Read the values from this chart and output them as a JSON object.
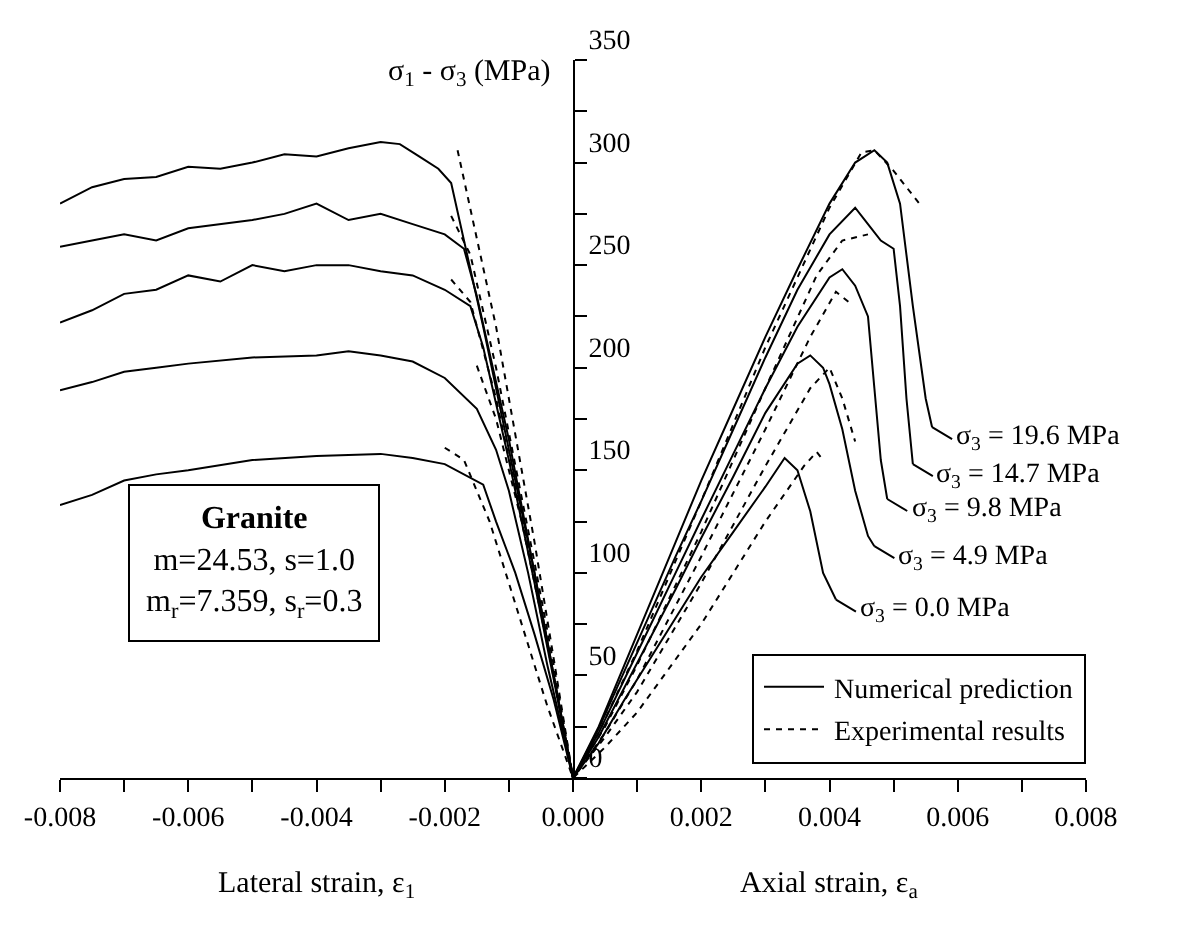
{
  "chart_data": {
    "type": "line",
    "xlabel": "Lateral strain, ε$_{1}$",
    "ylabel": "σ$_{1}$ - σ$_{3}$ (MPa)",
    "annotations": [
      "Granite\nm=24.53, s=1.0\nm$_{r}$=7.359, s$_{r}$=0.3",
      "Axial strain, ε$_{a}$",
      {
        "text": "σ$_{3}$ = 19.6 MPa",
        "x": 0.0056,
        "y": 171
      },
      {
        "text": "σ$_{3}$ = 14.7 MPa",
        "x": 0.0053,
        "y": 153
      },
      {
        "text": "σ$_{3}$ = 9.8 MPa",
        "x": 0.0049,
        "y": 136
      },
      {
        "text": "σ$_{3}$ = 4.9 MPa",
        "x": 0.0047,
        "y": 113
      },
      {
        "text": "σ$_{3}$ = 0.0 MPa",
        "x": 0.0041,
        "y": 87
      }
    ],
    "xlim": [
      -0.008,
      0.008
    ],
    "xticks": [
      {
        "value": -0.008,
        "label": "-0.008"
      },
      {
        "value": -0.007,
        "label": null
      },
      {
        "value": -0.006,
        "label": "-0.006"
      },
      {
        "value": -0.005,
        "label": null
      },
      {
        "value": -0.004,
        "label": "-0.004"
      },
      {
        "value": -0.003,
        "label": null
      },
      {
        "value": -0.002,
        "label": "-0.002"
      },
      {
        "value": -0.001,
        "label": null
      },
      {
        "value": 0,
        "label": "0.000"
      },
      {
        "value": 0.001,
        "label": null
      },
      {
        "value": 0.002,
        "label": "0.002"
      },
      {
        "value": 0.003,
        "label": null
      },
      {
        "value": 0.004,
        "label": "0.004"
      },
      {
        "value": 0.005,
        "label": null
      },
      {
        "value": 0.006,
        "label": "0.006"
      },
      {
        "value": 0.007,
        "label": null
      },
      {
        "value": 0.008,
        "label": "0.008"
      }
    ],
    "ylim": [
      0,
      350
    ],
    "yticks": [
      0,
      {
        "value": 25,
        "label": null
      },
      50,
      {
        "value": 75,
        "label": null
      },
      100,
      {
        "value": 125,
        "label": null
      },
      150,
      {
        "value": 175,
        "label": null
      },
      200,
      {
        "value": 225,
        "label": null
      },
      250,
      {
        "value": 275,
        "label": null
      },
      300,
      {
        "value": 325,
        "label": null
      },
      350
    ],
    "legend": "bottom right",
    "marker": "none",
    "series": [
      {
        "name": "Numerical prediction",
        "color": "#000000",
        "line_style": "solid",
        "x": [
          -0.008,
          -0.0075,
          -0.007,
          -0.0065,
          -0.006,
          -0.0055,
          -0.005,
          -0.0045,
          -0.004,
          -0.0035,
          -0.003,
          -0.0027,
          -0.0024,
          -0.0021,
          -0.0019,
          -0.0017,
          -0.0014,
          -0.001,
          -0.0006,
          -0.0003,
          0,
          0.0004,
          0.0008,
          0.0012,
          0.0016,
          0.002,
          0.0025,
          0.003,
          0.0035,
          0.004,
          0.0044,
          0.0047,
          0.0049,
          0.0051,
          0.0053,
          0.0055,
          0.0056
        ],
        "values": [
          280,
          288,
          292,
          293,
          298,
          297,
          300,
          304,
          303,
          307,
          310,
          309,
          303,
          297,
          290,
          262,
          220,
          160,
          100,
          50,
          0,
          25,
          55,
          85,
          115,
          145,
          180,
          215,
          248,
          280,
          300,
          306,
          300,
          280,
          230,
          185,
          171
        ]
      },
      {
        "color": "#000000",
        "line_style": "solid",
        "x": [
          -0.008,
          -0.0075,
          -0.007,
          -0.0065,
          -0.006,
          -0.005,
          -0.0045,
          -0.004,
          -0.0035,
          -0.003,
          -0.0025,
          -0.002,
          -0.0017,
          -0.0015,
          -0.001,
          -0.0006,
          -0.0003,
          0,
          0.0004,
          0.0008,
          0.0012,
          0.0016,
          0.002,
          0.0025,
          0.003,
          0.0035,
          0.004,
          0.0044,
          0.0046,
          0.0048,
          0.005,
          0.0051,
          0.0052,
          0.0053
        ],
        "values": [
          259,
          262,
          265,
          262,
          268,
          272,
          275,
          280,
          272,
          275,
          270,
          265,
          258,
          235,
          165,
          100,
          50,
          0,
          24,
          52,
          80,
          108,
          135,
          170,
          205,
          238,
          265,
          278,
          270,
          262,
          258,
          230,
          185,
          153
        ]
      },
      {
        "color": "#000000",
        "line_style": "solid",
        "x": [
          -0.008,
          -0.0075,
          -0.007,
          -0.0065,
          -0.006,
          -0.0055,
          -0.005,
          -0.0045,
          -0.004,
          -0.0035,
          -0.003,
          -0.0025,
          -0.002,
          -0.0016,
          -0.0014,
          -0.001,
          -0.0006,
          -0.0003,
          0,
          0.0004,
          0.0008,
          0.0012,
          0.0016,
          0.002,
          0.0025,
          0.003,
          0.0035,
          0.004,
          0.0042,
          0.0044,
          0.0046,
          0.0047,
          0.0048,
          0.0049
        ],
        "values": [
          222,
          228,
          236,
          238,
          245,
          242,
          250,
          247,
          250,
          250,
          247,
          245,
          238,
          230,
          210,
          155,
          95,
          48,
          0,
          22,
          48,
          74,
          100,
          126,
          158,
          190,
          220,
          244,
          248,
          240,
          225,
          190,
          155,
          136
        ]
      },
      {
        "color": "#000000",
        "line_style": "solid",
        "x": [
          -0.008,
          -0.0075,
          -0.007,
          -0.0065,
          -0.006,
          -0.005,
          -0.004,
          -0.0035,
          -0.003,
          -0.0025,
          -0.002,
          -0.0015,
          -0.0012,
          -0.001,
          -0.0007,
          -0.0004,
          -0.0002,
          0,
          0.0004,
          0.0008,
          0.0012,
          0.0016,
          0.002,
          0.0025,
          0.003,
          0.0035,
          0.0037,
          0.0039,
          0.004,
          0.0042,
          0.0044,
          0.0046,
          0.0047
        ],
        "values": [
          189,
          193,
          198,
          200,
          202,
          205,
          206,
          208,
          206,
          203,
          195,
          180,
          160,
          140,
          100,
          55,
          28,
          0,
          20,
          44,
          68,
          92,
          117,
          147,
          178,
          202,
          206,
          200,
          192,
          170,
          140,
          118,
          113
        ]
      },
      {
        "color": "#000000",
        "line_style": "solid",
        "x": [
          -0.008,
          -0.0075,
          -0.007,
          -0.0065,
          -0.006,
          -0.005,
          -0.004,
          -0.003,
          -0.0025,
          -0.002,
          -0.0014,
          -0.0012,
          -0.0009,
          -0.0006,
          -0.0003,
          0,
          0.0004,
          0.0008,
          0.0012,
          0.0016,
          0.002,
          0.0025,
          0.003,
          0.0033,
          0.0035,
          0.0037,
          0.0039,
          0.0041
        ],
        "values": [
          133,
          138,
          145,
          148,
          150,
          155,
          157,
          158,
          156,
          153,
          143,
          125,
          100,
          70,
          38,
          0,
          17,
          38,
          58,
          78,
          98,
          120,
          142,
          156,
          150,
          130,
          100,
          87
        ]
      },
      {
        "name": "Experimental results",
        "color": "#000000",
        "line_style": "dotted",
        "x": [
          -0.0018,
          -0.0012,
          -0.0006,
          -0.0003,
          0,
          0.0004,
          0.001,
          0.002,
          0.003,
          0.004,
          0.0045,
          0.0047,
          0.005,
          0.0054
        ],
        "values": [
          306,
          220,
          115,
          58,
          0,
          22,
          62,
          135,
          210,
          278,
          305,
          306,
          296,
          280
        ]
      },
      {
        "color": "#000000",
        "line_style": "dotted",
        "x": [
          -0.0019,
          -0.0016,
          -0.0012,
          -0.0006,
          -0.0003,
          0,
          0.0005,
          0.001,
          0.002,
          0.003,
          0.0038,
          0.0042,
          0.0046
        ],
        "values": [
          274,
          255,
          200,
          105,
          55,
          0,
          25,
          55,
          120,
          190,
          245,
          262,
          265
        ]
      },
      {
        "color": "#000000",
        "line_style": "dotted",
        "x": [
          -0.0019,
          -0.0016,
          -0.0012,
          -0.0006,
          -0.0003,
          0,
          0.0005,
          0.001,
          0.002,
          0.003,
          0.0037,
          0.0041,
          0.0043
        ],
        "values": [
          243,
          232,
          185,
          98,
          50,
          0,
          22,
          48,
          108,
          170,
          215,
          237,
          232
        ]
      },
      {
        "color": "#000000",
        "line_style": "dotted",
        "x": [
          -0.0015,
          -0.0012,
          -0.0008,
          -0.0004,
          0,
          0.0005,
          0.001,
          0.002,
          0.003,
          0.0037,
          0.004,
          0.0042,
          0.0044
        ],
        "values": [
          201,
          175,
          125,
          65,
          0,
          20,
          42,
          95,
          152,
          190,
          200,
          185,
          164
        ]
      },
      {
        "color": "#000000",
        "line_style": "dotted",
        "x": [
          -0.002,
          -0.0017,
          -0.0013,
          -0.0008,
          -0.0004,
          0,
          0.0005,
          0.001,
          0.002,
          0.003,
          0.0036,
          0.0038,
          0.0039
        ],
        "values": [
          161,
          155,
          125,
          75,
          35,
          0,
          15,
          32,
          75,
          125,
          152,
          159,
          155
        ]
      }
    ]
  }
}
